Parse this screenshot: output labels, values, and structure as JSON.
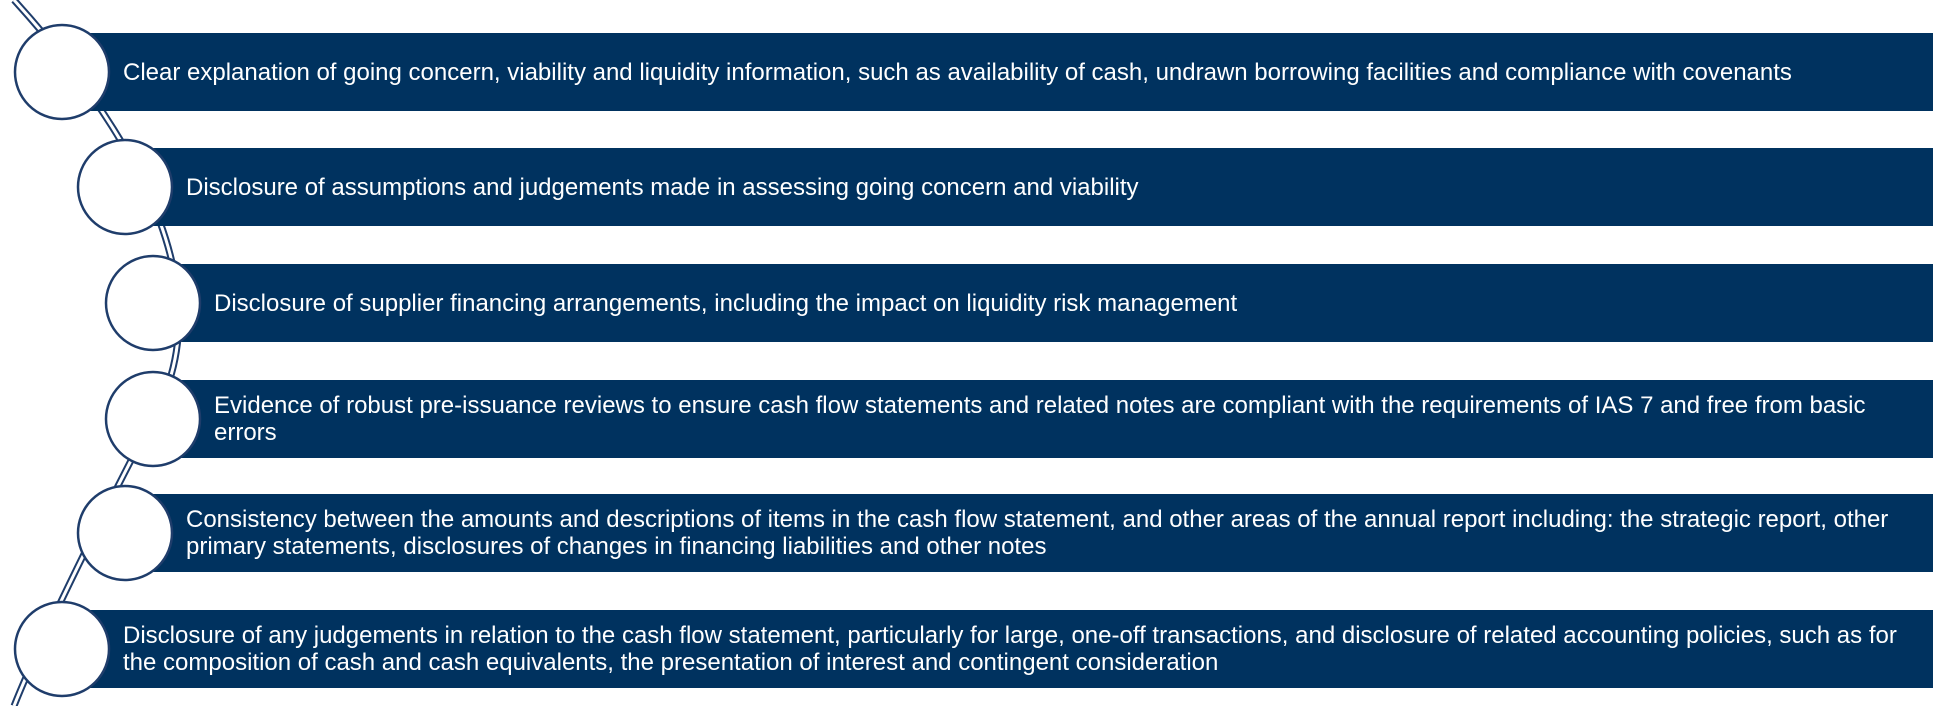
{
  "items": [
    "Clear explanation of going concern, viability and liquidity information, such as availability of cash, undrawn borrowing facilities and compliance with covenants",
    "Disclosure of assumptions and judgements made in assessing going concern and viability",
    "Disclosure of supplier financing arrangements, including the impact on liquidity risk management",
    "Evidence of robust pre-issuance reviews to ensure cash flow statements and related notes are compliant with the requirements of IAS 7 and free from basic errors",
    "Consistency between the amounts and descriptions of items in the cash flow statement, and other areas of the annual report including: the strategic report, other primary statements, disclosures of changes in financing liabilities and other notes",
    "Disclosure of any judgements in relation to the cash flow statement, particularly for large, one-off transactions, and disclosure of related accounting policies, such as for the composition of cash and cash equivalents, the presentation of interest and contingent consideration"
  ]
}
